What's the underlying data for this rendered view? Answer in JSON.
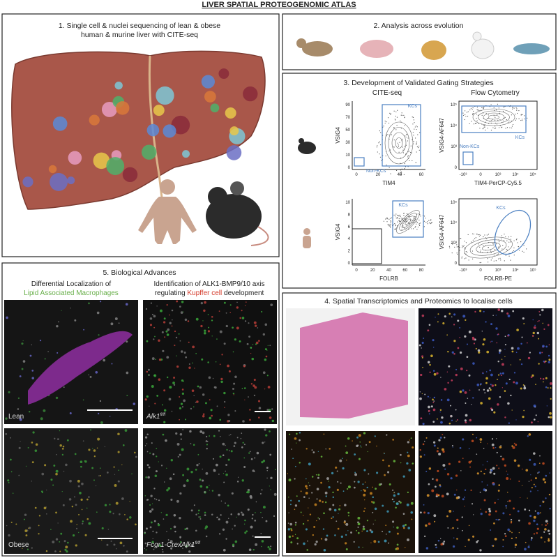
{
  "header": {
    "title": "LIVER SPATIAL PROTEOGENOMIC ATLAS"
  },
  "panel1": {
    "lines": [
      "1. Single cell & nuclei sequencing of lean & obese",
      "human & murine liver with CITE-seq"
    ]
  },
  "panel2": {
    "title": "2. Analysis across evolution"
  },
  "panel3": {
    "title": "3. Development of Validated Gating Strategies",
    "columns": [
      "CITE-seq",
      "Flow Cytometry"
    ],
    "plots": [
      {
        "ylabel": "VSIG4",
        "xlabel": "TIM4",
        "yticks": [
          "90",
          "70",
          "50",
          "30",
          "10",
          "0"
        ],
        "xticks": [
          "0",
          "20",
          "40",
          "60"
        ],
        "gates": [
          "KCs",
          "Non-KCs"
        ]
      },
      {
        "ylabel": "VSIG4-AF647",
        "xlabel": "TIM4-PerCP-Cy5.5",
        "yticks": [
          "10⁵",
          "10⁴",
          "10³",
          "0"
        ],
        "xticks": [
          "-10³",
          "0",
          "10³",
          "10⁴",
          "10⁵"
        ],
        "gates": [
          "KCs",
          "Non-KCs"
        ]
      },
      {
        "ylabel": "VSIG4",
        "xlabel": "FOLRB",
        "yticks": [
          "10",
          "8",
          "6",
          "4",
          "2",
          "0"
        ],
        "xticks": [
          "0",
          "20",
          "40",
          "60",
          "80"
        ],
        "gates": [
          "KCs"
        ]
      },
      {
        "ylabel": "VSIG4-AF647",
        "xlabel": "FOLRB-PE",
        "yticks": [
          "10⁵",
          "10⁴",
          "10³",
          "0"
        ],
        "xticks": [
          "-10³",
          "0",
          "10³",
          "10⁴",
          "10⁵"
        ],
        "gates": [
          "KCs"
        ]
      }
    ]
  },
  "panel4": {
    "title": "4. Spatial Transcriptomics and Proteomics to localise cells"
  },
  "panel5": {
    "title": "5. Biological Advances",
    "left": {
      "line1": "Differential Localization of",
      "highlight": "Lipid Associated Macrophages"
    },
    "right": {
      "line1": "Identification of ALK1-BMP9/10 axis",
      "pre": "regulating",
      "highlight": "Kupffer cell",
      "post": "development"
    },
    "labels": {
      "lean": "Lean",
      "obese": "Obese",
      "alk1": {
        "gene": "Alk1",
        "sup": "fl/fl"
      },
      "fcgr1": {
        "gene": "Fcgr1-CrexAlk1",
        "sup": "fl/fl"
      }
    }
  }
}
